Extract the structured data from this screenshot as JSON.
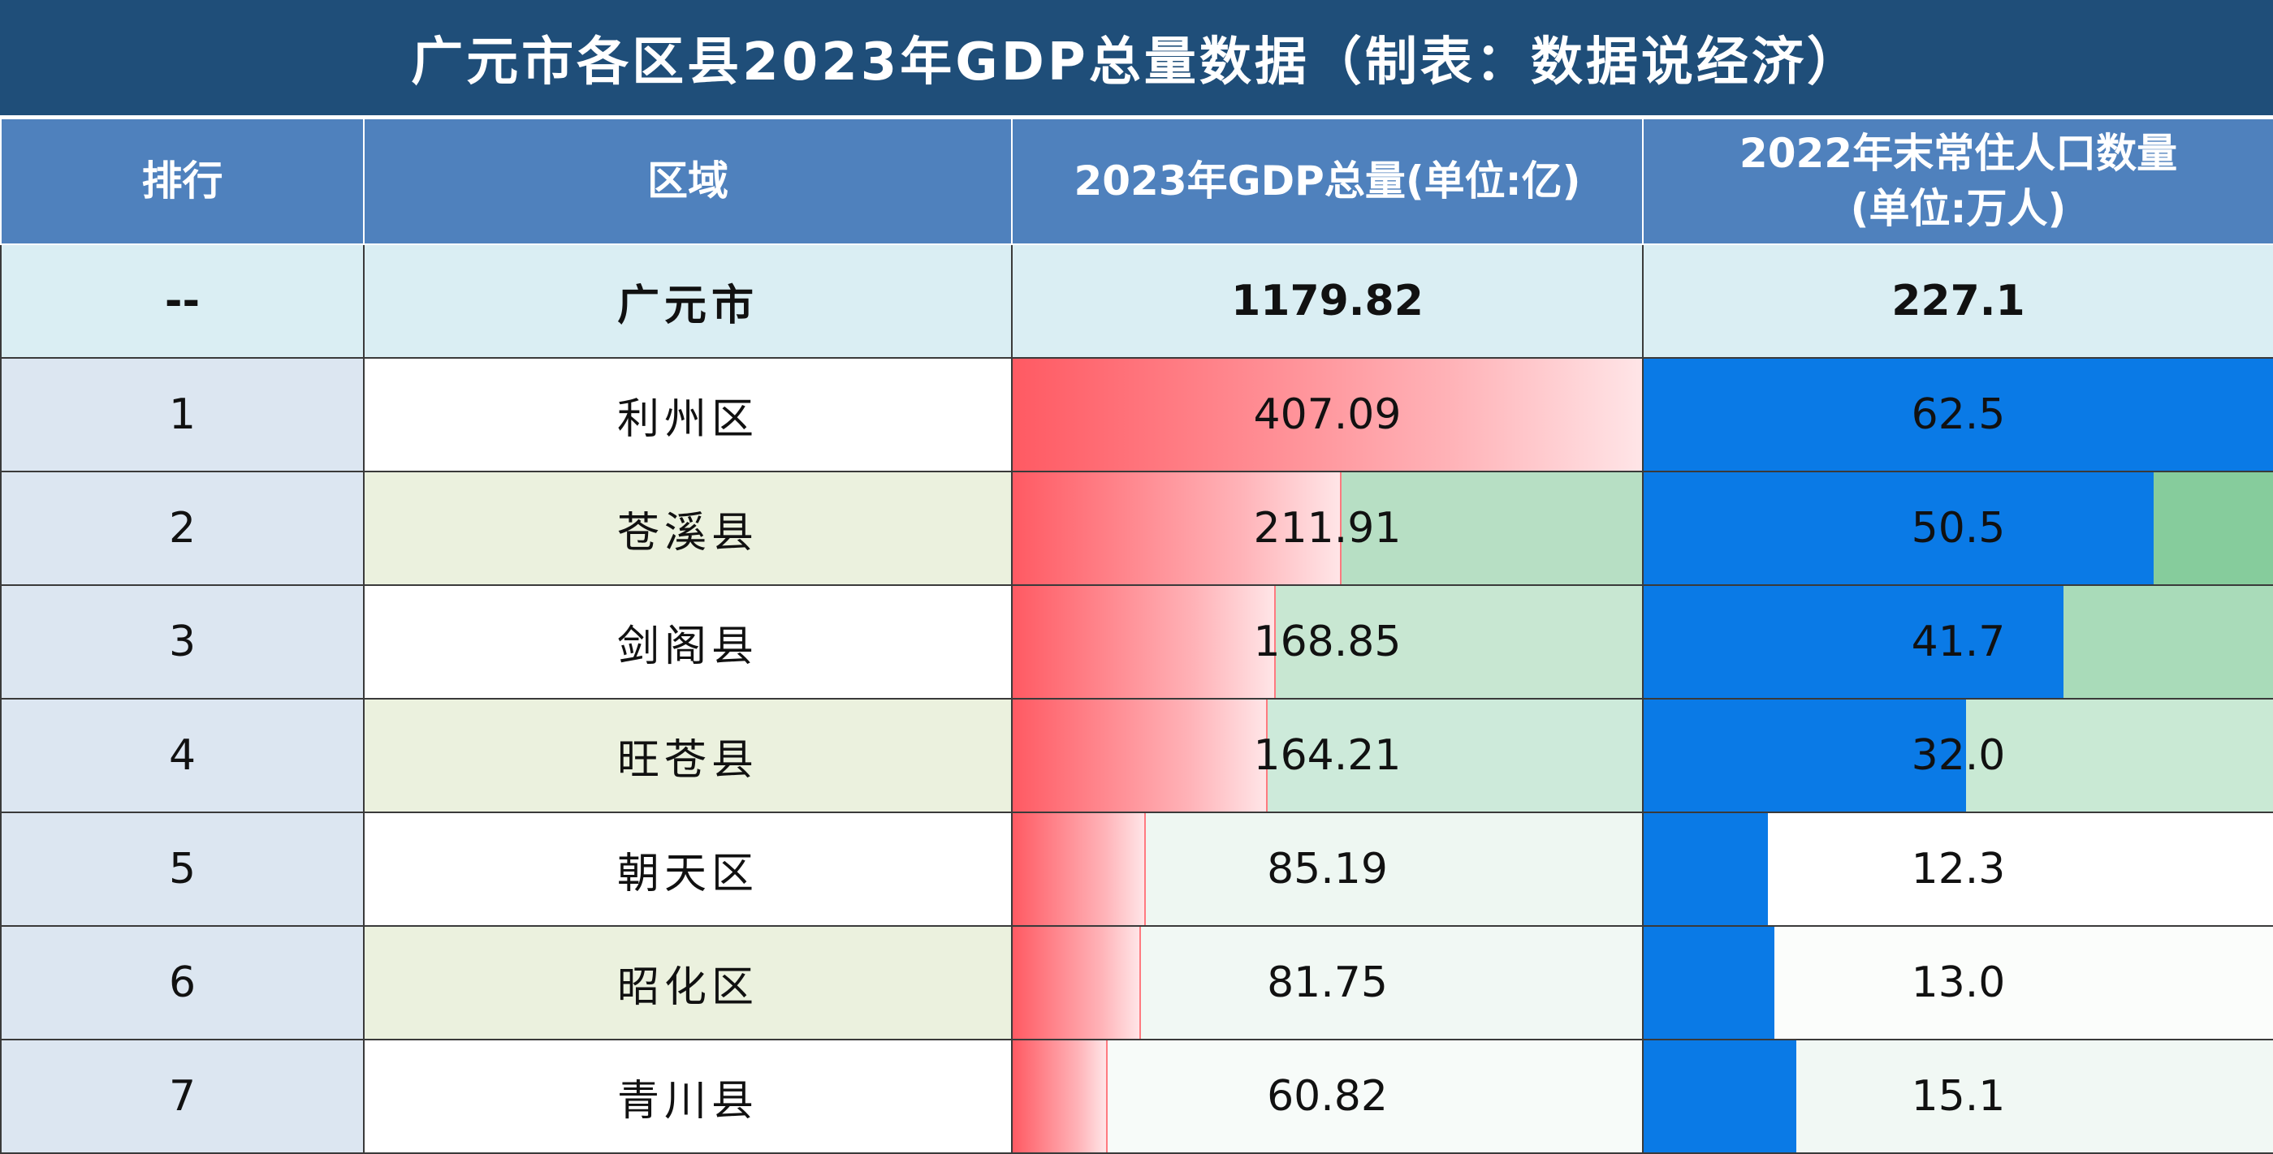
{
  "title": "广元市各区县2023年GDP总量数据（制表：数据说经济）",
  "headers": {
    "rank": "排行",
    "region": "区域",
    "gdp": "2023年GDP总量(单位:亿)",
    "pop_line1": "2022年末常住人口数量",
    "pop_line2": "(单位:万人)"
  },
  "total": {
    "rank": "--",
    "region": "广元市",
    "gdp": "1179.82",
    "pop": "227.1"
  },
  "rows": [
    {
      "rank": "1",
      "region": "利州区",
      "gdp": "407.09",
      "pop": "62.5",
      "gdp_fill": 1.0,
      "pop_fill": 1.0,
      "bg": "#ffffff",
      "pop_bg": "#ffffff"
    },
    {
      "rank": "2",
      "region": "苍溪县",
      "gdp": "211.91",
      "pop": "50.5",
      "gdp_fill": 0.52,
      "pop_fill": 0.81,
      "bg": "#b7dfc4",
      "pop_bg": "#86cc9c"
    },
    {
      "rank": "3",
      "region": "剑阁县",
      "gdp": "168.85",
      "pop": "41.7",
      "gdp_fill": 0.415,
      "pop_fill": 0.667,
      "bg": "#c8e7d2",
      "pop_bg": "#a9dbb9"
    },
    {
      "rank": "4",
      "region": "旺苍县",
      "gdp": "164.21",
      "pop": "32.0",
      "gdp_fill": 0.403,
      "pop_fill": 0.512,
      "bg": "#cdeada",
      "pop_bg": "#c9e9d4"
    },
    {
      "rank": "5",
      "region": "朝天区",
      "gdp": "85.19",
      "pop": "12.3",
      "gdp_fill": 0.209,
      "pop_fill": 0.197,
      "bg": "#eef7f2",
      "pop_bg": "#ffffff"
    },
    {
      "rank": "6",
      "region": "昭化区",
      "gdp": "81.75",
      "pop": "13.0",
      "gdp_fill": 0.201,
      "pop_fill": 0.208,
      "bg": "#f1f8f4",
      "pop_bg": "#fbfdfb"
    },
    {
      "rank": "7",
      "region": "青川县",
      "gdp": "60.82",
      "pop": "15.1",
      "gdp_fill": 0.149,
      "pop_fill": 0.242,
      "bg": "#f7fbf9",
      "pop_bg": "#f1f8f4"
    }
  ]
}
